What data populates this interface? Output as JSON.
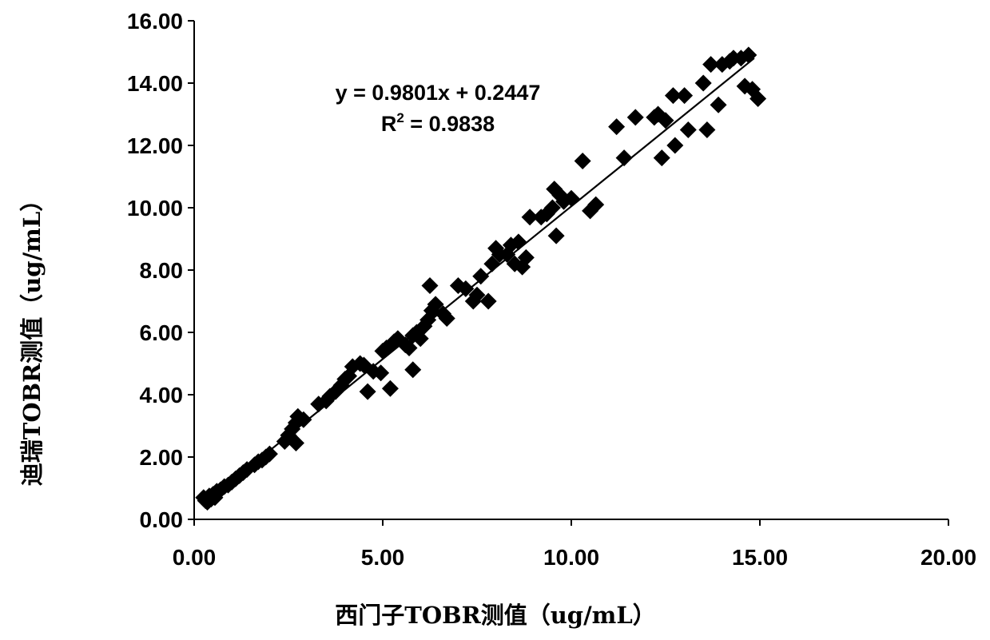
{
  "chart_data": {
    "type": "scatter",
    "xlabel": "西门子TOBR测值（ug/mL）",
    "ylabel": "迪瑞TOBR测值（ug/mL）",
    "xlim": [
      0,
      20
    ],
    "ylim": [
      0,
      16
    ],
    "x_ticks": [
      "0.00",
      "5.00",
      "10.00",
      "15.00",
      "20.00"
    ],
    "y_ticks": [
      "0.00",
      "2.00",
      "4.00",
      "6.00",
      "8.00",
      "10.00",
      "12.00",
      "14.00",
      "16.00"
    ],
    "x_tick_values": [
      0,
      5,
      10,
      15,
      20
    ],
    "y_tick_values": [
      0,
      2,
      4,
      6,
      8,
      10,
      12,
      14,
      16
    ],
    "grid": false,
    "legend": "none",
    "marker": "diamond",
    "marker_color": "#000000",
    "annotations": {
      "equation": "y = 0.9801x + 0.2447",
      "r2_label": "R",
      "r2_sup": "2",
      "r2_value": " = 0.9838"
    },
    "trendline": {
      "slope": 0.9801,
      "intercept": 0.2447,
      "x_range": [
        0.25,
        14.85
      ]
    },
    "points": [
      [
        0.25,
        0.7
      ],
      [
        0.3,
        0.6
      ],
      [
        0.35,
        0.55
      ],
      [
        0.4,
        0.75
      ],
      [
        0.45,
        0.65
      ],
      [
        0.5,
        0.8
      ],
      [
        0.55,
        0.7
      ],
      [
        0.6,
        0.9
      ],
      [
        0.7,
        0.95
      ],
      [
        0.8,
        1.05
      ],
      [
        0.9,
        1.1
      ],
      [
        1.0,
        1.2
      ],
      [
        1.1,
        1.3
      ],
      [
        1.2,
        1.4
      ],
      [
        1.3,
        1.5
      ],
      [
        1.4,
        1.6
      ],
      [
        1.6,
        1.75
      ],
      [
        1.7,
        1.85
      ],
      [
        1.8,
        1.9
      ],
      [
        1.9,
        2.0
      ],
      [
        2.0,
        2.1
      ],
      [
        2.4,
        2.5
      ],
      [
        2.5,
        2.7
      ],
      [
        2.6,
        2.9
      ],
      [
        2.7,
        3.1
      ],
      [
        2.75,
        3.3
      ],
      [
        2.7,
        2.45
      ],
      [
        2.9,
        3.2
      ],
      [
        3.3,
        3.7
      ],
      [
        3.5,
        3.8
      ],
      [
        3.6,
        3.95
      ],
      [
        3.75,
        4.1
      ],
      [
        3.9,
        4.3
      ],
      [
        4.0,
        4.5
      ],
      [
        4.1,
        4.6
      ],
      [
        4.2,
        4.9
      ],
      [
        4.4,
        5.0
      ],
      [
        4.5,
        4.95
      ],
      [
        4.6,
        4.1
      ],
      [
        4.75,
        4.75
      ],
      [
        4.95,
        4.7
      ],
      [
        5.0,
        5.4
      ],
      [
        5.1,
        5.5
      ],
      [
        5.2,
        4.2
      ],
      [
        5.3,
        5.7
      ],
      [
        5.4,
        5.8
      ],
      [
        5.6,
        5.6
      ],
      [
        5.7,
        5.5
      ],
      [
        5.8,
        4.8
      ],
      [
        5.8,
        5.9
      ],
      [
        5.9,
        6.0
      ],
      [
        6.0,
        5.8
      ],
      [
        6.1,
        6.2
      ],
      [
        6.2,
        6.4
      ],
      [
        6.25,
        7.5
      ],
      [
        6.3,
        6.7
      ],
      [
        6.4,
        6.9
      ],
      [
        6.6,
        6.6
      ],
      [
        6.7,
        6.45
      ],
      [
        7.0,
        7.5
      ],
      [
        7.2,
        7.4
      ],
      [
        7.4,
        7.0
      ],
      [
        7.5,
        7.2
      ],
      [
        7.6,
        7.8
      ],
      [
        7.8,
        7.0
      ],
      [
        7.9,
        8.2
      ],
      [
        8.0,
        8.7
      ],
      [
        8.1,
        8.5
      ],
      [
        8.3,
        8.5
      ],
      [
        8.4,
        8.8
      ],
      [
        8.5,
        8.2
      ],
      [
        8.6,
        8.9
      ],
      [
        8.7,
        8.1
      ],
      [
        8.8,
        8.4
      ],
      [
        8.9,
        9.7
      ],
      [
        9.2,
        9.7
      ],
      [
        9.35,
        9.8
      ],
      [
        9.5,
        10.0
      ],
      [
        9.55,
        10.6
      ],
      [
        9.6,
        9.1
      ],
      [
        9.7,
        10.4
      ],
      [
        9.8,
        10.2
      ],
      [
        10.0,
        10.3
      ],
      [
        10.3,
        11.5
      ],
      [
        10.5,
        9.9
      ],
      [
        10.65,
        10.1
      ],
      [
        11.2,
        12.6
      ],
      [
        11.4,
        11.6
      ],
      [
        11.7,
        12.9
      ],
      [
        12.2,
        12.9
      ],
      [
        12.3,
        13.0
      ],
      [
        12.4,
        11.6
      ],
      [
        12.5,
        12.8
      ],
      [
        12.7,
        13.6
      ],
      [
        12.75,
        12.0
      ],
      [
        13.0,
        13.6
      ],
      [
        13.1,
        12.5
      ],
      [
        13.5,
        14.0
      ],
      [
        13.6,
        12.5
      ],
      [
        13.7,
        14.6
      ],
      [
        13.9,
        13.3
      ],
      [
        14.0,
        14.6
      ],
      [
        14.2,
        14.7
      ],
      [
        14.3,
        14.8
      ],
      [
        14.5,
        14.8
      ],
      [
        14.7,
        14.9
      ],
      [
        14.6,
        13.9
      ],
      [
        14.8,
        13.8
      ],
      [
        14.95,
        13.5
      ]
    ]
  }
}
